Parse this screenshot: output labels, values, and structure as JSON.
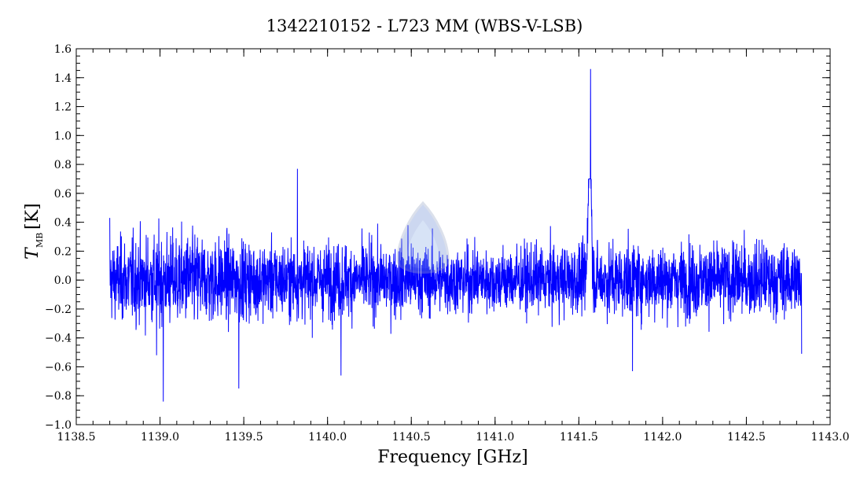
{
  "chart_data": {
    "type": "line",
    "title": "1342210152 - L723 MM (WBS-V-LSB)",
    "xlabel": "Frequency [GHz]",
    "ylabel_main": "T",
    "ylabel_sub": "MB",
    "ylabel_unit": "[K]",
    "xlim": [
      1138.5,
      1143.0
    ],
    "ylim": [
      -1.0,
      1.6
    ],
    "x_ticks": [
      "1138.5",
      "1139.0",
      "1139.5",
      "1140.0",
      "1140.5",
      "1141.0",
      "1141.5",
      "1142.0",
      "1142.5",
      "1143.0"
    ],
    "y_ticks": [
      "−1.0",
      "−0.8",
      "−0.6",
      "−0.4",
      "−0.2",
      "0.0",
      "0.2",
      "0.4",
      "0.6",
      "0.8",
      "1.0",
      "1.2",
      "1.4",
      "1.6"
    ],
    "grid": false,
    "series": [
      {
        "color": "#0000ff",
        "x_range": [
          1138.7,
          1142.83
        ],
        "noise_rms": 0.18,
        "baseline": 0.0,
        "line_feature": {
          "center": 1141.565,
          "peak": 1.46,
          "width": 0.012
        },
        "notable_points": [
          [
            1138.7,
            0.43
          ],
          [
            1138.98,
            -0.52
          ],
          [
            1139.02,
            -0.84
          ],
          [
            1139.47,
            -0.75
          ],
          [
            1139.82,
            0.77
          ],
          [
            1140.08,
            -0.66
          ],
          [
            1140.48,
            0.38
          ],
          [
            1141.57,
            1.46
          ],
          [
            1141.82,
            -0.63
          ],
          [
            1142.83,
            -0.51
          ]
        ]
      }
    ]
  }
}
